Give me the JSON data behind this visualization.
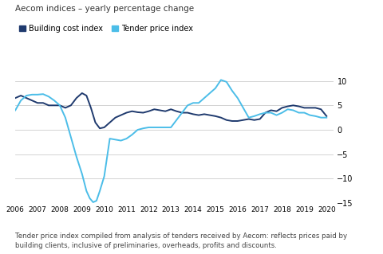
{
  "title": "Aecom indices – yearly percentage change",
  "legend_labels": [
    "Building cost index",
    "Tender price index"
  ],
  "line1_color": "#1f3a6e",
  "line2_color": "#4bbde8",
  "background_color": "#ffffff",
  "ylim": [
    -15,
    12
  ],
  "yticks": [
    -15,
    -10,
    -5,
    0,
    5,
    10
  ],
  "xlabel_years": [
    2006,
    2007,
    2008,
    2009,
    2010,
    2011,
    2012,
    2013,
    2014,
    2015,
    2016,
    2017,
    2018,
    2019,
    2020
  ],
  "footnote": "Tender price index compiled from analysis of tenders received by Aecom: reflects prices paid by\nbuilding clients, inclusive of preliminaries, overheads, profits and discounts.",
  "building_cost_x": [
    2006.0,
    2006.25,
    2006.5,
    2006.75,
    2007.0,
    2007.25,
    2007.5,
    2007.75,
    2008.0,
    2008.25,
    2008.5,
    2008.75,
    2009.0,
    2009.2,
    2009.4,
    2009.6,
    2009.8,
    2010.0,
    2010.25,
    2010.5,
    2010.75,
    2011.0,
    2011.25,
    2011.5,
    2011.75,
    2012.0,
    2012.25,
    2012.5,
    2012.75,
    2013.0,
    2013.25,
    2013.5,
    2013.75,
    2014.0,
    2014.25,
    2014.5,
    2014.75,
    2015.0,
    2015.25,
    2015.5,
    2015.75,
    2016.0,
    2016.25,
    2016.5,
    2016.75,
    2017.0,
    2017.25,
    2017.5,
    2017.75,
    2018.0,
    2018.25,
    2018.5,
    2018.75,
    2019.0,
    2019.25,
    2019.5,
    2019.75,
    2020.0
  ],
  "building_cost_y": [
    6.5,
    7.0,
    6.5,
    6.0,
    5.5,
    5.5,
    5.0,
    5.0,
    5.0,
    4.5,
    5.0,
    6.5,
    7.5,
    7.0,
    4.5,
    1.5,
    0.3,
    0.5,
    1.5,
    2.5,
    3.0,
    3.5,
    3.8,
    3.6,
    3.5,
    3.8,
    4.2,
    4.0,
    3.8,
    4.2,
    3.8,
    3.5,
    3.5,
    3.2,
    3.0,
    3.2,
    3.0,
    2.8,
    2.5,
    2.0,
    1.8,
    1.8,
    2.0,
    2.2,
    2.0,
    2.2,
    3.5,
    4.0,
    3.8,
    4.5,
    4.8,
    5.0,
    4.8,
    4.5,
    4.5,
    4.5,
    4.2,
    2.8
  ],
  "tender_price_x": [
    2006.0,
    2006.25,
    2006.5,
    2006.75,
    2007.0,
    2007.25,
    2007.5,
    2007.75,
    2008.0,
    2008.25,
    2008.5,
    2008.75,
    2009.0,
    2009.2,
    2009.35,
    2009.5,
    2009.65,
    2009.8,
    2010.0,
    2010.25,
    2010.5,
    2010.75,
    2011.0,
    2011.25,
    2011.5,
    2011.75,
    2012.0,
    2012.25,
    2012.5,
    2012.75,
    2013.0,
    2013.25,
    2013.5,
    2013.75,
    2014.0,
    2014.25,
    2014.5,
    2014.75,
    2015.0,
    2015.25,
    2015.5,
    2015.75,
    2016.0,
    2016.25,
    2016.5,
    2016.75,
    2017.0,
    2017.25,
    2017.5,
    2017.75,
    2018.0,
    2018.25,
    2018.5,
    2018.75,
    2019.0,
    2019.25,
    2019.5,
    2019.75,
    2020.0
  ],
  "tender_price_y": [
    4.0,
    6.0,
    7.0,
    7.2,
    7.2,
    7.3,
    6.8,
    6.0,
    5.0,
    2.5,
    -1.5,
    -5.5,
    -9.0,
    -12.5,
    -14.0,
    -14.8,
    -14.5,
    -12.5,
    -9.5,
    -1.8,
    -2.0,
    -2.2,
    -1.8,
    -1.0,
    0.0,
    0.3,
    0.5,
    0.5,
    0.5,
    0.5,
    0.5,
    2.0,
    3.5,
    5.0,
    5.5,
    5.5,
    6.5,
    7.5,
    8.5,
    10.2,
    9.8,
    8.0,
    6.5,
    4.5,
    2.5,
    2.8,
    3.2,
    3.5,
    3.5,
    3.0,
    3.5,
    4.2,
    4.0,
    3.5,
    3.5,
    3.0,
    2.8,
    2.5,
    2.5
  ]
}
